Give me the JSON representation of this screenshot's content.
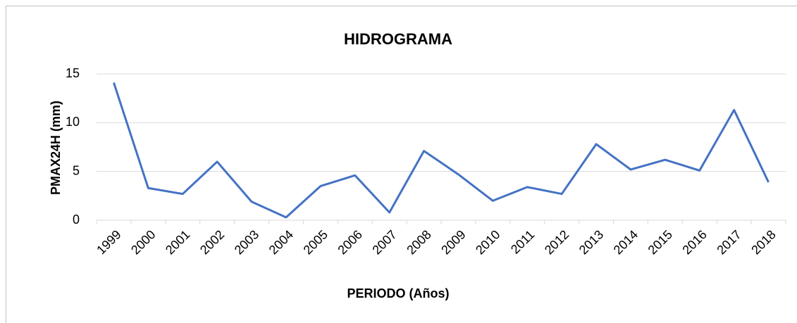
{
  "chart_data": {
    "type": "line",
    "title": "HIDROGRAMA",
    "x_label": "PERIODO (Años)",
    "y_label": "PMAX24H (mm)",
    "categories": [
      "1999",
      "2000",
      "2001",
      "2002",
      "2003",
      "2004",
      "2005",
      "2006",
      "2007",
      "2008",
      "2009",
      "2010",
      "2011",
      "2012",
      "2013",
      "2014",
      "2015",
      "2016",
      "2017",
      "2018"
    ],
    "series": [
      {
        "name": "PMAX24H",
        "color": "#4472c4",
        "values": [
          14.1,
          3.3,
          2.7,
          6.0,
          1.9,
          0.3,
          3.5,
          4.6,
          0.8,
          7.1,
          4.7,
          2.0,
          3.4,
          2.7,
          7.8,
          5.2,
          6.2,
          5.1,
          11.3,
          3.9
        ]
      }
    ],
    "ylim": [
      0,
      15
    ],
    "yticks": [
      0,
      5,
      10,
      15
    ],
    "grid": true
  }
}
